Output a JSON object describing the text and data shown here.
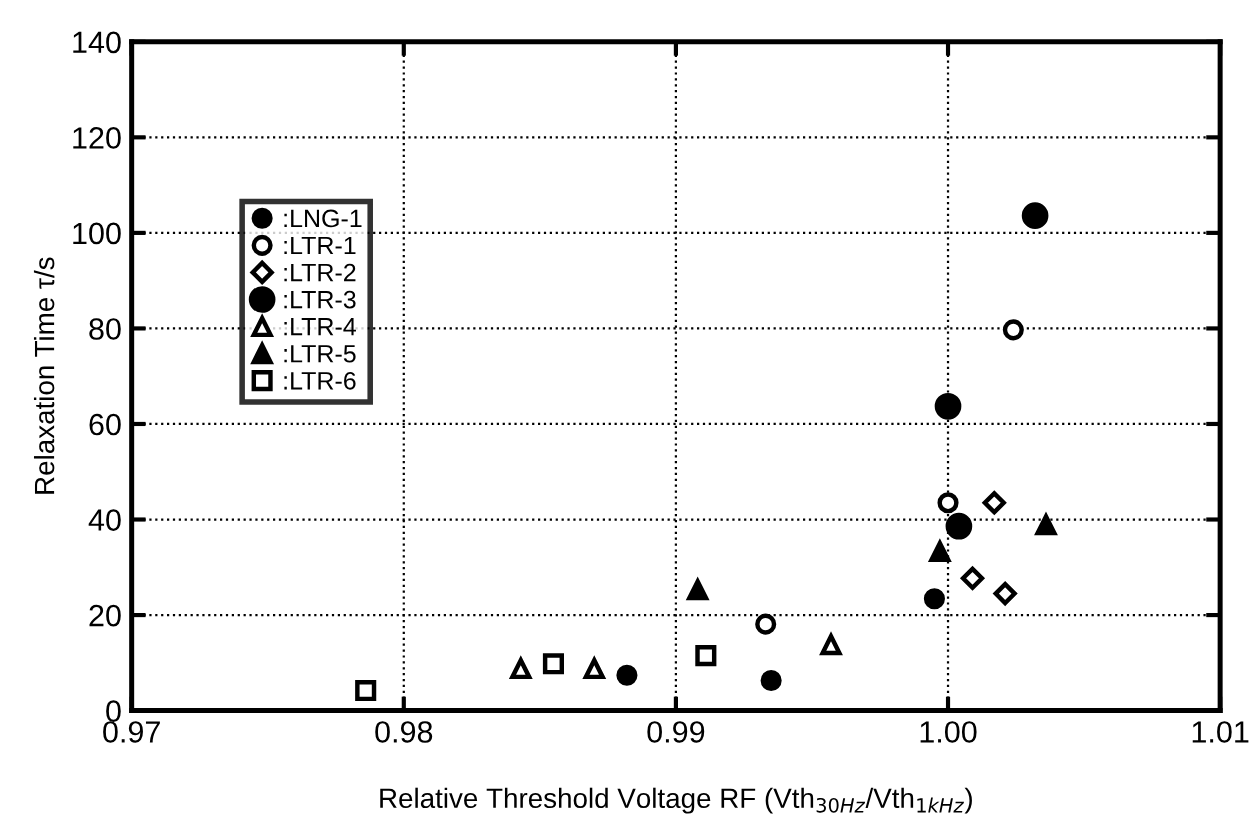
{
  "chart_data": {
    "type": "scatter",
    "xlabel": "Relative Threshold Voltage RF (Vth$_{30Hz}$/Vth$_{1kHz}$)",
    "ylabel": "Relaxation Time τ/s",
    "series": [
      {
        "name": ":LNG-1",
        "color": "#000000",
        "marker": "circle",
        "x": [
          0.9882,
          0.9935,
          0.9995
        ],
        "values": [
          7.4,
          6.3,
          23.4
        ]
      },
      {
        "name": ":LTR-1",
        "color": "#000000",
        "marker": "circle",
        "x": [
          1.0,
          0.9933,
          1.0024
        ],
        "values": [
          43.5,
          18.1,
          79.7
        ]
      },
      {
        "name": ":LTR-2",
        "color": "#000000",
        "marker": "diamond",
        "x": [
          1.0017,
          1.0009,
          1.0021
        ],
        "values": [
          43.5,
          27.7,
          24.5
        ]
      },
      {
        "name": ":LTR-3",
        "color": "#000000",
        "marker": "circle",
        "x": [
          1.0,
          1.0004,
          1.0032
        ],
        "values": [
          63.7,
          38.6,
          103.6
        ]
      },
      {
        "name": ":LTR-4",
        "color": "#000000",
        "marker": "triangle",
        "x": [
          0.9843,
          0.987,
          0.9957
        ],
        "values": [
          8.8,
          8.8,
          13.8
        ]
      },
      {
        "name": ":LTR-5",
        "color": "#000000",
        "marker": "triangle",
        "x": [
          0.9908,
          0.9997,
          1.0036
        ],
        "values": [
          25.3,
          33.3,
          38.9
        ]
      },
      {
        "name": ":LTR-6",
        "color": "#000000",
        "marker": "square",
        "x": [
          0.9786,
          0.9855,
          0.9911
        ],
        "values": [
          4.2,
          9.8,
          11.5
        ]
      }
    ],
    "xlim": [
      0.97,
      1.01
    ],
    "xticks": [
      0.97,
      0.98,
      0.99,
      {
        "value": 1.0,
        "label": "1.00"
      },
      1.01
    ],
    "ylim": [
      0,
      140
    ],
    "yticks": [
      0,
      20,
      40,
      60,
      80,
      100,
      120,
      140
    ],
    "grid": true,
    "legend": "top left"
  }
}
